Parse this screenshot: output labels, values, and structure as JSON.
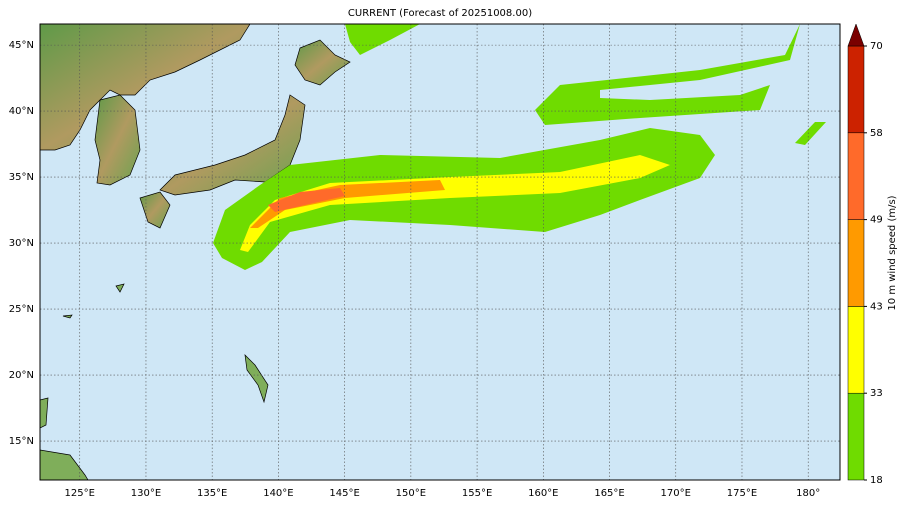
{
  "map": {
    "title": "CURRENT (Forecast of 20251008.00)",
    "xlim": [
      122,
      182.4
    ],
    "ylim": [
      12.05,
      46.6
    ],
    "xticks": [
      {
        "value": 125,
        "label": "125°E"
      },
      {
        "value": 130,
        "label": "130°E"
      },
      {
        "value": 135,
        "label": "135°E"
      },
      {
        "value": 140,
        "label": "140°E"
      },
      {
        "value": 145,
        "label": "145°E"
      },
      {
        "value": 150,
        "label": "150°E"
      },
      {
        "value": 155,
        "label": "155°E"
      },
      {
        "value": 160,
        "label": "160°E"
      },
      {
        "value": 165,
        "label": "165°E"
      },
      {
        "value": 170,
        "label": "170°E"
      },
      {
        "value": 175,
        "label": "175°E"
      },
      {
        "value": 180,
        "label": "180°"
      }
    ],
    "yticks": [
      {
        "value": 15,
        "label": "15°N"
      },
      {
        "value": 20,
        "label": "20°N"
      },
      {
        "value": 25,
        "label": "25°N"
      },
      {
        "value": 30,
        "label": "30°N"
      },
      {
        "value": 35,
        "label": "35°N"
      },
      {
        "value": 40,
        "label": "40°N"
      },
      {
        "value": 45,
        "label": "45°N"
      }
    ],
    "grid": true
  },
  "colorbar": {
    "label": "10 m wind speed (m/s)",
    "ticks": [
      18,
      33,
      43,
      49,
      58,
      70
    ],
    "colors": [
      "#6fdc00",
      "#ffff00",
      "#ff9a00",
      "#ff6a2a",
      "#cc2200"
    ],
    "extend_color": "#7a0000"
  }
}
